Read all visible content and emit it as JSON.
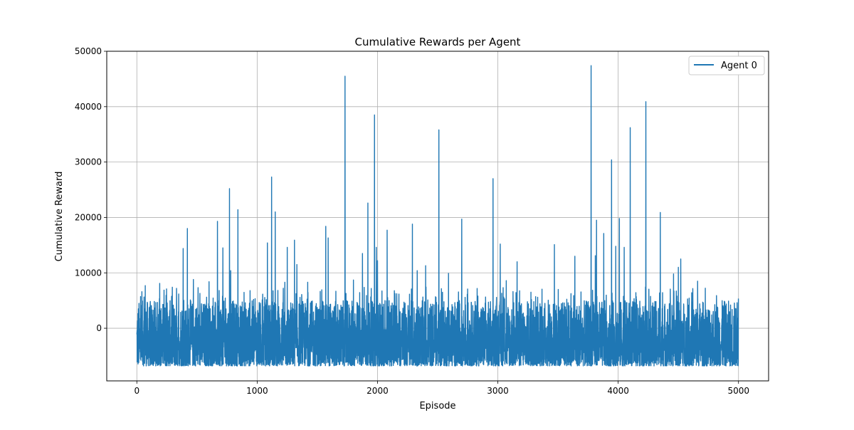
{
  "chart_data": {
    "type": "line",
    "title": "Cumulative Rewards per Agent",
    "xlabel": "Episode",
    "ylabel": "Cumulative Reward",
    "xlim": [
      -250,
      5250
    ],
    "ylim": [
      -9500,
      50000
    ],
    "xticks": [
      0,
      1000,
      2000,
      3000,
      4000,
      5000
    ],
    "yticks": [
      0,
      10000,
      20000,
      30000,
      40000,
      50000
    ],
    "grid": true,
    "legend_position": "top-right",
    "series": [
      {
        "name": "Agent 0",
        "color": "#1f77b4",
        "n_episodes": 5000,
        "baseline_range": [
          -6800,
          5000
        ],
        "peaks": [
          {
            "x": 70,
            "y": 7700
          },
          {
            "x": 190,
            "y": 8100
          },
          {
            "x": 330,
            "y": 7200
          },
          {
            "x": 385,
            "y": 14400
          },
          {
            "x": 420,
            "y": 18000
          },
          {
            "x": 470,
            "y": 8800
          },
          {
            "x": 600,
            "y": 8400
          },
          {
            "x": 670,
            "y": 19300
          },
          {
            "x": 715,
            "y": 14500
          },
          {
            "x": 770,
            "y": 25200
          },
          {
            "x": 780,
            "y": 10400
          },
          {
            "x": 840,
            "y": 21400
          },
          {
            "x": 970,
            "y": 5200
          },
          {
            "x": 1085,
            "y": 15400
          },
          {
            "x": 1120,
            "y": 27300
          },
          {
            "x": 1150,
            "y": 21000
          },
          {
            "x": 1230,
            "y": 8300
          },
          {
            "x": 1250,
            "y": 14600
          },
          {
            "x": 1310,
            "y": 15900
          },
          {
            "x": 1330,
            "y": 11500
          },
          {
            "x": 1420,
            "y": 8300
          },
          {
            "x": 1570,
            "y": 18400
          },
          {
            "x": 1590,
            "y": 16300
          },
          {
            "x": 1730,
            "y": 45500
          },
          {
            "x": 1800,
            "y": 8700
          },
          {
            "x": 1875,
            "y": 13500
          },
          {
            "x": 1920,
            "y": 22600
          },
          {
            "x": 1975,
            "y": 38500
          },
          {
            "x": 1990,
            "y": 14600
          },
          {
            "x": 2000,
            "y": 12200
          },
          {
            "x": 2080,
            "y": 17700
          },
          {
            "x": 2290,
            "y": 18800
          },
          {
            "x": 2330,
            "y": 10400
          },
          {
            "x": 2400,
            "y": 11300
          },
          {
            "x": 2510,
            "y": 35800
          },
          {
            "x": 2590,
            "y": 9900
          },
          {
            "x": 2700,
            "y": 19700
          },
          {
            "x": 2960,
            "y": 27000
          },
          {
            "x": 3020,
            "y": 15200
          },
          {
            "x": 3070,
            "y": 8600
          },
          {
            "x": 3160,
            "y": 12000
          },
          {
            "x": 3470,
            "y": 15100
          },
          {
            "x": 3640,
            "y": 13000
          },
          {
            "x": 3775,
            "y": 47400
          },
          {
            "x": 3810,
            "y": 13100
          },
          {
            "x": 3820,
            "y": 19500
          },
          {
            "x": 3880,
            "y": 17100
          },
          {
            "x": 3945,
            "y": 30400
          },
          {
            "x": 3980,
            "y": 14800
          },
          {
            "x": 4010,
            "y": 19800
          },
          {
            "x": 4050,
            "y": 14600
          },
          {
            "x": 4100,
            "y": 36200
          },
          {
            "x": 4230,
            "y": 40900
          },
          {
            "x": 4350,
            "y": 20900
          },
          {
            "x": 4460,
            "y": 9800
          },
          {
            "x": 4500,
            "y": 11000
          },
          {
            "x": 4520,
            "y": 12500
          },
          {
            "x": 4660,
            "y": 8500
          }
        ]
      }
    ]
  }
}
